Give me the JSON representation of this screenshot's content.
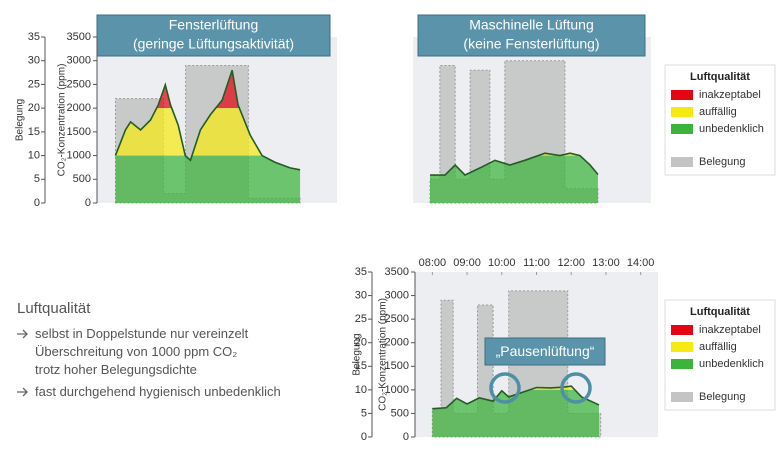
{
  "chart_data": [
    {
      "type": "area",
      "title": [
        "Fensterlüftung",
        "(geringe Lüftungsaktivität)"
      ],
      "ylabel": "CO₂-Konzentration (ppm)",
      "y2label": "Belegung",
      "xlim": [
        7.5,
        14.0
      ],
      "ylim": [
        0,
        3500
      ],
      "yticks": [
        0,
        500,
        1000,
        1500,
        2000,
        2500,
        3000,
        3500
      ],
      "y2lim": [
        0,
        35
      ],
      "y2ticks": [
        0,
        5,
        10,
        15,
        20,
        25,
        30,
        35
      ],
      "bands": [
        {
          "color": "#e30613",
          "from": 2000,
          "to": 3500
        },
        {
          "color": "#f5ea14",
          "from": 1000,
          "to": 2000
        },
        {
          "color": "#3cb43c",
          "from": 0,
          "to": 1000
        }
      ],
      "series": [
        {
          "color": "#c4c4c4",
          "axis": "y2",
          "step": true,
          "x": [
            8.0,
            9.3,
            9.9,
            11.6,
            13.0
          ],
          "values": [
            22,
            2,
            29,
            1,
            1
          ]
        },
        {
          "color": "#245c24",
          "x": [
            8.0,
            8.27,
            8.41,
            8.68,
            8.95,
            9.16,
            9.35,
            9.49,
            9.7,
            9.89,
            10.03,
            10.3,
            10.57,
            10.89,
            11.16,
            11.32,
            11.65,
            11.97,
            12.32,
            12.73,
            13.0
          ],
          "values": [
            1000,
            1540,
            1710,
            1540,
            1750,
            2070,
            2490,
            2070,
            1640,
            1000,
            900,
            1540,
            1860,
            2170,
            2800,
            2070,
            1430,
            1000,
            860,
            740,
            700
          ]
        }
      ]
    },
    {
      "type": "area",
      "title": [
        "Maschinelle Lüftung",
        "(keine Fensterlüftung)"
      ],
      "xlim": [
        7.5,
        14.5
      ],
      "ylim": [
        0,
        3500
      ],
      "y2lim": [
        0,
        35
      ],
      "bands": [
        {
          "name": "inakzeptabel",
          "color": "#e30613",
          "from": 2000,
          "to": 3500
        },
        {
          "name": "auffällig",
          "color": "#f5ea14",
          "from": 1000,
          "to": 2000
        },
        {
          "name": "unbedenklich",
          "color": "#3cb43c",
          "from": 0,
          "to": 1000
        }
      ],
      "legend": "right",
      "legend_title": "Luftqualität",
      "series": [
        {
          "name": "Belegung",
          "color": "#c4c4c4",
          "axis": "y2",
          "step": true,
          "x": [
            8.0,
            8.29,
            8.74,
            9.18,
            9.76,
            10.2,
            11.97,
            12.94
          ],
          "values": [
            5,
            29,
            5,
            28,
            5,
            30,
            3,
            3
          ]
        },
        {
          "color": "#245c24",
          "x": [
            8.0,
            8.44,
            8.74,
            9.03,
            9.47,
            9.91,
            10.35,
            10.79,
            11.38,
            11.82,
            12.12,
            12.41,
            12.71,
            12.94
          ],
          "values": [
            590,
            590,
            800,
            590,
            740,
            900,
            800,
            900,
            1050,
            1000,
            1050,
            1000,
            800,
            600
          ]
        }
      ]
    },
    {
      "type": "area",
      "ylabel": "CO₂-Konzentration (ppm)",
      "y2label": "Belegung",
      "xlim": [
        7.5,
        14.5
      ],
      "xticks": [
        {
          "value": 8,
          "label": "08:00"
        },
        {
          "value": 9,
          "label": "09:00"
        },
        {
          "value": 10,
          "label": "10:00"
        },
        {
          "value": 11,
          "label": "11:00"
        },
        {
          "value": 12,
          "label": "12:00"
        },
        {
          "value": 13,
          "label": "13:00"
        },
        {
          "value": 14,
          "label": "14:00"
        }
      ],
      "ylim": [
        0,
        3500
      ],
      "yticks": [
        0,
        500,
        1000,
        1500,
        2000,
        2500,
        3000,
        3500
      ],
      "y2lim": [
        0,
        35
      ],
      "y2ticks": [
        0,
        5,
        10,
        15,
        20,
        25,
        30,
        35
      ],
      "annotation": "„Pausenlüftung“",
      "bands": [
        {
          "name": "inakzeptabel",
          "color": "#e30613",
          "from": 2000,
          "to": 3500
        },
        {
          "name": "auffällig",
          "color": "#f5ea14",
          "from": 1000,
          "to": 2000
        },
        {
          "name": "unbedenklich",
          "color": "#3cb43c",
          "from": 0,
          "to": 1000
        }
      ],
      "legend": "right",
      "legend_title": "Luftqualität",
      "series": [
        {
          "name": "Belegung",
          "color": "#c4c4c4",
          "axis": "y2",
          "step": true,
          "x": [
            8.0,
            8.25,
            8.6,
            9.3,
            9.75,
            10.2,
            11.9,
            12.85
          ],
          "values": [
            6,
            29,
            5,
            28,
            5,
            31,
            5,
            5
          ]
        },
        {
          "color": "#245c24",
          "x": [
            8.0,
            8.4,
            8.7,
            9.0,
            9.35,
            9.75,
            10.0,
            10.2,
            10.6,
            11.0,
            11.4,
            11.8,
            12.0,
            12.3,
            12.8
          ],
          "values": [
            600,
            620,
            820,
            700,
            830,
            760,
            980,
            850,
            950,
            1050,
            1040,
            1060,
            1080,
            850,
            680
          ]
        }
      ]
    }
  ],
  "sidebar": {
    "title": "Luftqualität",
    "bullets": [
      [
        "selbst in Doppelstunde nur vereinzelt",
        "Überschreitung von 1000 ppm CO₂",
        "trotz hoher Belegungsdichte"
      ],
      [
        "fast durchgehend hygienisch unbedenklich"
      ]
    ]
  }
}
